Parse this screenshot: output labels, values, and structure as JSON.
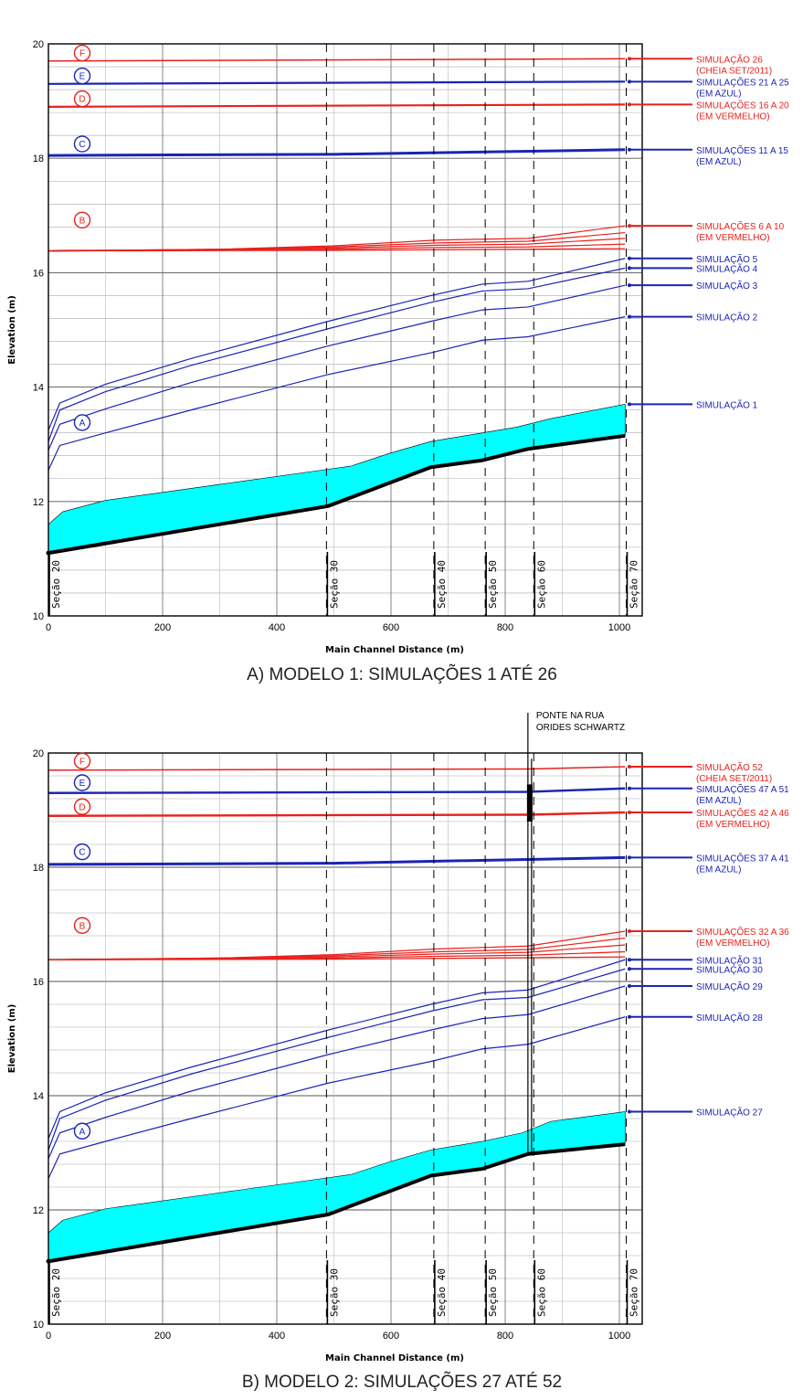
{
  "colors": {
    "red": "#e8211c",
    "blue": "#1b24b5",
    "fill": "#00ffff",
    "bed": "#000000",
    "grid": "#888888"
  },
  "chart_data": [
    {
      "type": "line",
      "caption": "A) MODELO 1: SIMULAÇÕES 1 ATÉ 26",
      "xlabel": "Main Channel Distance (m)",
      "ylabel": "Elevation (m)",
      "xlim": [
        0,
        1040
      ],
      "ylim": [
        10,
        20
      ],
      "xticks": [
        "0",
        "200",
        "400",
        "600",
        "800",
        "1000"
      ],
      "yticks": [
        "10",
        "12",
        "14",
        "16",
        "18",
        "20"
      ],
      "sections": [
        {
          "x": 0,
          "label": "Seção 20"
        },
        {
          "x": 487,
          "label": "Seção 30"
        },
        {
          "x": 675,
          "label": "Seção 40"
        },
        {
          "x": 765,
          "label": "Seção 50"
        },
        {
          "x": 850,
          "label": "Seção 60"
        },
        {
          "x": 1012,
          "label": "Seção 70"
        }
      ],
      "bed": [
        [
          0,
          11.1
        ],
        [
          490,
          11.92
        ],
        [
          670,
          12.6
        ],
        [
          760,
          12.72
        ],
        [
          840,
          12.92
        ],
        [
          1010,
          13.15
        ]
      ],
      "fill_top": [
        [
          0,
          11.6
        ],
        [
          25,
          11.82
        ],
        [
          100,
          12.02
        ],
        [
          300,
          12.3
        ],
        [
          480,
          12.55
        ],
        [
          530,
          12.62
        ],
        [
          600,
          12.85
        ],
        [
          670,
          13.05
        ],
        [
          760,
          13.2
        ],
        [
          820,
          13.3
        ],
        [
          880,
          13.45
        ],
        [
          1010,
          13.7
        ]
      ],
      "series": [
        {
          "name": "SIMULAÇÃO 26",
          "note": "(CHEIA SET/2011)",
          "color": "red",
          "circle": "F",
          "points": [
            [
              0,
              19.7
            ],
            [
              1010,
              19.74
            ]
          ],
          "width": 1.5
        },
        {
          "name": "SIMULAÇÕES 21 A 25",
          "note": "(EM AZUL)",
          "color": "blue",
          "circle": "E",
          "points": [
            [
              0,
              19.3
            ],
            [
              1010,
              19.34
            ]
          ],
          "width": 2.2
        },
        {
          "name": "SIMULAÇÕES 16 A 20",
          "note": "(EM VERMELHO)",
          "color": "red",
          "circle": "D",
          "points": [
            [
              0,
              18.9
            ],
            [
              1010,
              18.94
            ]
          ],
          "width": 2.2
        },
        {
          "name": "SIMULAÇÕES 11 A 15",
          "note": "(EM AZUL)",
          "color": "blue",
          "circle": "C",
          "points": [
            [
              0,
              18.05
            ],
            [
              500,
              18.07
            ],
            [
              1010,
              18.15
            ]
          ],
          "width": 3
        },
        {
          "name": "SIMULAÇÕES 6 A 10",
          "note": "(EM VERMELHO)",
          "color": "red",
          "circle": "B",
          "points": [
            [
              0,
              16.38
            ],
            [
              300,
              16.41
            ],
            [
              500,
              16.47
            ],
            [
              680,
              16.57
            ],
            [
              840,
              16.6
            ],
            [
              1010,
              16.82
            ]
          ],
          "width": 1.2
        },
        {
          "name": "",
          "note": "",
          "color": "red",
          "circle": "",
          "points": [
            [
              0,
              16.38
            ],
            [
              300,
              16.41
            ],
            [
              500,
              16.45
            ],
            [
              680,
              16.52
            ],
            [
              840,
              16.55
            ],
            [
              1010,
              16.7
            ]
          ],
          "width": 1.2
        },
        {
          "name": "",
          "note": "",
          "color": "red",
          "circle": "",
          "points": [
            [
              0,
              16.38
            ],
            [
              300,
              16.4
            ],
            [
              500,
              16.43
            ],
            [
              680,
              16.48
            ],
            [
              840,
              16.5
            ],
            [
              1010,
              16.6
            ]
          ],
          "width": 1.2
        },
        {
          "name": "",
          "note": "",
          "color": "red",
          "circle": "",
          "points": [
            [
              0,
              16.38
            ],
            [
              300,
              16.39
            ],
            [
              500,
              16.41
            ],
            [
              680,
              16.44
            ],
            [
              840,
              16.45
            ],
            [
              1010,
              16.5
            ]
          ],
          "width": 1.2
        },
        {
          "name": "",
          "note": "",
          "color": "red",
          "circle": "",
          "points": [
            [
              0,
              16.38
            ],
            [
              500,
              16.39
            ],
            [
              1010,
              16.42
            ]
          ],
          "width": 1.2
        },
        {
          "name": "SIMULAÇÃO 5",
          "note": "",
          "color": "blue",
          "circle": "",
          "points": [
            [
              0,
              13.25
            ],
            [
              20,
              13.72
            ],
            [
              100,
              14.05
            ],
            [
              250,
              14.5
            ],
            [
              490,
              15.15
            ],
            [
              670,
              15.6
            ],
            [
              760,
              15.8
            ],
            [
              840,
              15.85
            ],
            [
              1010,
              16.25
            ]
          ],
          "width": 1.2
        },
        {
          "name": "SIMULAÇÃO 4",
          "note": "",
          "color": "blue",
          "circle": "",
          "points": [
            [
              0,
              13.05
            ],
            [
              20,
              13.6
            ],
            [
              100,
              13.92
            ],
            [
              250,
              14.38
            ],
            [
              490,
              15.02
            ],
            [
              670,
              15.48
            ],
            [
              760,
              15.68
            ],
            [
              840,
              15.72
            ],
            [
              1010,
              16.08
            ]
          ],
          "width": 1.2
        },
        {
          "name": "SIMULAÇÃO 3",
          "note": "",
          "color": "blue",
          "circle": "",
          "points": [
            [
              0,
              12.9
            ],
            [
              20,
              13.35
            ],
            [
              100,
              13.62
            ],
            [
              250,
              14.08
            ],
            [
              490,
              14.72
            ],
            [
              670,
              15.15
            ],
            [
              760,
              15.35
            ],
            [
              840,
              15.4
            ],
            [
              1010,
              15.78
            ]
          ],
          "width": 1.2
        },
        {
          "name": "SIMULAÇÃO 2",
          "note": "",
          "color": "blue",
          "circle": "",
          "points": [
            [
              0,
              12.55
            ],
            [
              20,
              12.98
            ],
            [
              100,
              13.2
            ],
            [
              250,
              13.6
            ],
            [
              490,
              14.22
            ],
            [
              670,
              14.6
            ],
            [
              760,
              14.82
            ],
            [
              840,
              14.88
            ],
            [
              1010,
              15.23
            ]
          ],
          "width": 1.2
        },
        {
          "name": "SIMULAÇÃO 1",
          "note": "",
          "color": "blue",
          "circle": "A",
          "points": [
            [
              1010,
              13.7
            ]
          ],
          "width": 1.2
        }
      ]
    },
    {
      "type": "line",
      "caption": "B) MODELO 2: SIMULAÇÕES 27 ATÉ 52",
      "xlabel": "Main Channel Distance (m)",
      "ylabel": "Elevation (m)",
      "xlim": [
        0,
        1040
      ],
      "ylim": [
        10,
        20
      ],
      "xticks": [
        "0",
        "200",
        "400",
        "600",
        "800",
        "1000"
      ],
      "yticks": [
        "10",
        "12",
        "14",
        "16",
        "18",
        "20"
      ],
      "sections": [
        {
          "x": 0,
          "label": "Seção 20"
        },
        {
          "x": 487,
          "label": "Seção 30"
        },
        {
          "x": 675,
          "label": "Seção 40"
        },
        {
          "x": 765,
          "label": "Seção 50"
        },
        {
          "x": 850,
          "label": "Seção 60"
        },
        {
          "x": 1012,
          "label": "Seção 70"
        }
      ],
      "bridge": {
        "label_line1": "PONTE NA RUA",
        "label_line2": "ORIDES SCHWARTZ",
        "x": 843,
        "ybottom": 12.95,
        "ytop": 19.9,
        "deck_bottom": 18.8,
        "deck_top": 19.45
      },
      "bed": [
        [
          0,
          11.1
        ],
        [
          490,
          11.92
        ],
        [
          670,
          12.6
        ],
        [
          760,
          12.72
        ],
        [
          840,
          12.98
        ],
        [
          1010,
          13.15
        ]
      ],
      "fill_top": [
        [
          0,
          11.6
        ],
        [
          25,
          11.82
        ],
        [
          100,
          12.02
        ],
        [
          300,
          12.3
        ],
        [
          480,
          12.55
        ],
        [
          530,
          12.62
        ],
        [
          600,
          12.85
        ],
        [
          670,
          13.05
        ],
        [
          760,
          13.2
        ],
        [
          830,
          13.35
        ],
        [
          880,
          13.55
        ],
        [
          1010,
          13.72
        ]
      ],
      "series": [
        {
          "name": "SIMULAÇÃO 52",
          "note": "(CHEIA SET/2011)",
          "color": "red",
          "circle": "F",
          "points": [
            [
              0,
              19.7
            ],
            [
              840,
              19.72
            ],
            [
              1010,
              19.76
            ]
          ],
          "width": 1.5
        },
        {
          "name": "SIMULAÇÕES 47 A 51",
          "note": "(EM AZUL)",
          "color": "blue",
          "circle": "E",
          "points": [
            [
              0,
              19.3
            ],
            [
              840,
              19.32
            ],
            [
              1010,
              19.38
            ]
          ],
          "width": 2.4
        },
        {
          "name": "SIMULAÇÕES 42 A 46",
          "note": "(EM VERMELHO)",
          "color": "red",
          "circle": "D",
          "points": [
            [
              0,
              18.9
            ],
            [
              840,
              18.92
            ],
            [
              1010,
              18.96
            ]
          ],
          "width": 2.4
        },
        {
          "name": "SIMULAÇÕES 37 A 41",
          "note": "(EM AZUL)",
          "color": "blue",
          "circle": "C",
          "points": [
            [
              0,
              18.05
            ],
            [
              500,
              18.07
            ],
            [
              1010,
              18.17
            ]
          ],
          "width": 3
        },
        {
          "name": "SIMULAÇÕES 32 A 36",
          "note": "(EM VERMELHO)",
          "color": "red",
          "circle": "B",
          "points": [
            [
              0,
              16.38
            ],
            [
              300,
              16.41
            ],
            [
              500,
              16.47
            ],
            [
              680,
              16.57
            ],
            [
              840,
              16.62
            ],
            [
              1010,
              16.88
            ]
          ],
          "width": 1.2
        },
        {
          "name": "",
          "note": "",
          "color": "red",
          "circle": "",
          "points": [
            [
              0,
              16.38
            ],
            [
              300,
              16.41
            ],
            [
              500,
              16.45
            ],
            [
              680,
              16.52
            ],
            [
              840,
              16.56
            ],
            [
              1010,
              16.76
            ]
          ],
          "width": 1.2
        },
        {
          "name": "",
          "note": "",
          "color": "red",
          "circle": "",
          "points": [
            [
              0,
              16.38
            ],
            [
              300,
              16.4
            ],
            [
              500,
              16.43
            ],
            [
              680,
              16.48
            ],
            [
              840,
              16.51
            ],
            [
              1010,
              16.64
            ]
          ],
          "width": 1.2
        },
        {
          "name": "",
          "note": "",
          "color": "red",
          "circle": "",
          "points": [
            [
              0,
              16.38
            ],
            [
              300,
              16.39
            ],
            [
              500,
              16.41
            ],
            [
              680,
              16.44
            ],
            [
              840,
              16.46
            ],
            [
              1010,
              16.52
            ]
          ],
          "width": 1.2
        },
        {
          "name": "",
          "note": "",
          "color": "red",
          "circle": "",
          "points": [
            [
              0,
              16.38
            ],
            [
              500,
              16.39
            ],
            [
              1010,
              16.43
            ]
          ],
          "width": 1.2
        },
        {
          "name": "SIMULAÇÃO 31",
          "note": "",
          "color": "blue",
          "circle": "",
          "points": [
            [
              0,
              13.25
            ],
            [
              20,
              13.72
            ],
            [
              100,
              14.05
            ],
            [
              250,
              14.5
            ],
            [
              490,
              15.15
            ],
            [
              670,
              15.6
            ],
            [
              760,
              15.8
            ],
            [
              840,
              15.85
            ],
            [
              1010,
              16.38
            ]
          ],
          "width": 1.2
        },
        {
          "name": "SIMULAÇÃO 30",
          "note": "",
          "color": "blue",
          "circle": "",
          "points": [
            [
              0,
              13.05
            ],
            [
              20,
              13.6
            ],
            [
              100,
              13.92
            ],
            [
              250,
              14.38
            ],
            [
              490,
              15.02
            ],
            [
              670,
              15.48
            ],
            [
              760,
              15.68
            ],
            [
              840,
              15.72
            ],
            [
              1010,
              16.22
            ]
          ],
          "width": 1.2
        },
        {
          "name": "SIMULAÇÃO 29",
          "note": "",
          "color": "blue",
          "circle": "",
          "points": [
            [
              0,
              12.9
            ],
            [
              20,
              13.35
            ],
            [
              100,
              13.62
            ],
            [
              250,
              14.08
            ],
            [
              490,
              14.72
            ],
            [
              670,
              15.15
            ],
            [
              760,
              15.35
            ],
            [
              840,
              15.42
            ],
            [
              1010,
              15.92
            ]
          ],
          "width": 1.2
        },
        {
          "name": "SIMULAÇÃO 28",
          "note": "",
          "color": "blue",
          "circle": "",
          "points": [
            [
              0,
              12.55
            ],
            [
              20,
              12.98
            ],
            [
              100,
              13.2
            ],
            [
              250,
              13.6
            ],
            [
              490,
              14.22
            ],
            [
              670,
              14.6
            ],
            [
              760,
              14.82
            ],
            [
              840,
              14.9
            ],
            [
              1010,
              15.38
            ]
          ],
          "width": 1.2
        },
        {
          "name": "SIMULAÇÃO 27",
          "note": "",
          "color": "blue",
          "circle": "A",
          "points": [
            [
              1010,
              13.72
            ]
          ],
          "width": 1.2
        }
      ]
    }
  ]
}
